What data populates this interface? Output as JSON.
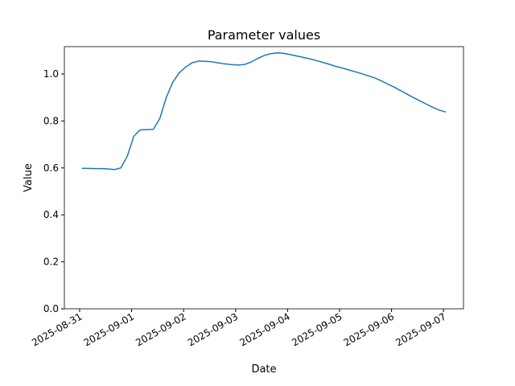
{
  "chart_data": {
    "type": "line",
    "title": "Parameter values",
    "x_label": "Date",
    "y_label": "Value",
    "x": [
      "2025-08-31T01:00",
      "2025-08-31T04:00",
      "2025-08-31T07:00",
      "2025-08-31T10:00",
      "2025-08-31T13:00",
      "2025-08-31T16:00",
      "2025-08-31T19:00",
      "2025-08-31T22:00",
      "2025-09-01T01:00",
      "2025-09-01T04:00",
      "2025-09-01T07:00",
      "2025-09-01T10:00",
      "2025-09-01T13:00",
      "2025-09-01T16:00",
      "2025-09-01T19:00",
      "2025-09-01T22:00",
      "2025-09-02T01:00",
      "2025-09-02T04:00",
      "2025-09-02T07:00",
      "2025-09-02T10:00",
      "2025-09-02T13:00",
      "2025-09-02T16:00",
      "2025-09-02T19:00",
      "2025-09-02T22:00",
      "2025-09-03T01:00",
      "2025-09-03T04:00",
      "2025-09-03T07:00",
      "2025-09-03T10:00",
      "2025-09-03T13:00",
      "2025-09-03T16:00",
      "2025-09-03T19:00",
      "2025-09-03T22:00",
      "2025-09-04T01:00",
      "2025-09-04T04:00",
      "2025-09-04T07:00",
      "2025-09-04T10:00",
      "2025-09-04T13:00",
      "2025-09-04T16:00",
      "2025-09-04T19:00",
      "2025-09-04T22:00",
      "2025-09-05T01:00",
      "2025-09-05T04:00",
      "2025-09-05T07:00",
      "2025-09-05T10:00",
      "2025-09-05T13:00",
      "2025-09-05T16:00",
      "2025-09-05T19:00",
      "2025-09-05T22:00",
      "2025-09-06T01:00",
      "2025-09-06T04:00",
      "2025-09-06T07:00",
      "2025-09-06T10:00",
      "2025-09-06T13:00",
      "2025-09-06T16:00",
      "2025-09-06T19:00",
      "2025-09-06T22:00",
      "2025-09-07T01:00"
    ],
    "values": [
      0.598,
      0.598,
      0.597,
      0.597,
      0.596,
      0.593,
      0.6,
      0.65,
      0.735,
      0.762,
      0.763,
      0.764,
      0.81,
      0.9,
      0.965,
      1.005,
      1.03,
      1.048,
      1.055,
      1.054,
      1.052,
      1.047,
      1.043,
      1.04,
      1.038,
      1.04,
      1.05,
      1.065,
      1.078,
      1.086,
      1.09,
      1.088,
      1.083,
      1.077,
      1.071,
      1.065,
      1.058,
      1.05,
      1.042,
      1.033,
      1.026,
      1.018,
      1.01,
      1.002,
      0.993,
      0.984,
      0.972,
      0.958,
      0.945,
      0.93,
      0.915,
      0.9,
      0.886,
      0.872,
      0.858,
      0.846,
      0.838
    ],
    "color": "#1f77b4",
    "xlim": [
      "2025-08-30T16:57",
      "2025-09-07T09:13"
    ],
    "xticks": [
      "2025-08-31",
      "2025-09-01",
      "2025-09-02",
      "2025-09-03",
      "2025-09-04",
      "2025-09-05",
      "2025-09-06",
      "2025-09-07"
    ],
    "ylim": [
      0,
      1.1164
    ],
    "yticks": [
      {
        "value": 0,
        "label": "0.0"
      },
      {
        "value": 0.2,
        "label": "0.2"
      },
      {
        "value": 0.4,
        "label": "0.4"
      },
      {
        "value": 0.6,
        "label": "0.6"
      },
      {
        "value": 0.8,
        "label": "0.8"
      },
      {
        "value": 1,
        "label": "1.0"
      }
    ]
  }
}
